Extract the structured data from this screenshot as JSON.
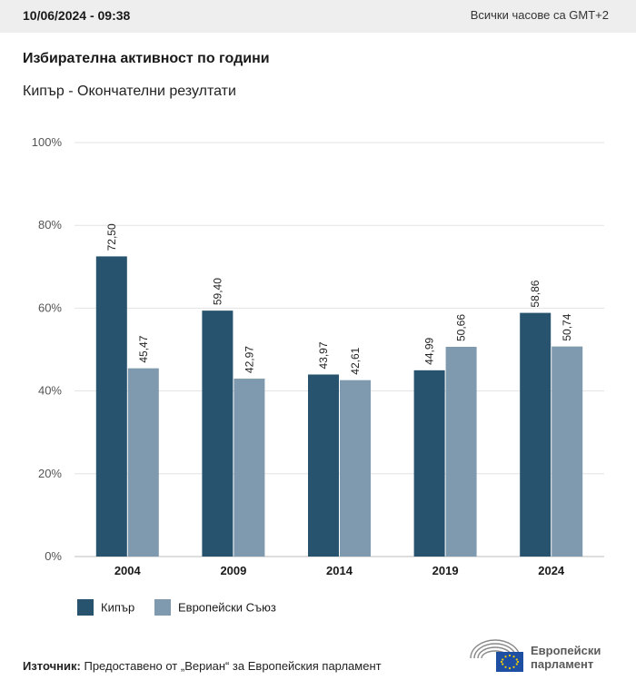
{
  "header": {
    "timestamp": "10/06/2024 - 09:38",
    "timezone": "Всички часове са GMT+2"
  },
  "title": "Избирателна активност по години",
  "subtitle": "Кипър - Окончателни резултати",
  "colors": {
    "cyprus": "#27536f",
    "eu": "#7f9aae",
    "grid": "#e3e3e3",
    "axis": "#bdbdbd"
  },
  "chart_data": {
    "type": "bar",
    "categories": [
      "2004",
      "2009",
      "2014",
      "2019",
      "2024"
    ],
    "series": [
      {
        "name": "Кипър",
        "values": [
          72.5,
          59.4,
          43.97,
          44.99,
          58.86
        ],
        "labels": [
          "72,50",
          "59,40",
          "43,97",
          "44,99",
          "58,86"
        ]
      },
      {
        "name": "Европейски Съюз",
        "values": [
          45.47,
          42.97,
          42.61,
          50.66,
          50.74
        ],
        "labels": [
          "45,47",
          "42,97",
          "42,61",
          "50,66",
          "50,74"
        ]
      }
    ],
    "y_ticks": [
      {
        "value": 0,
        "label": "0%"
      },
      {
        "value": 20,
        "label": "20%"
      },
      {
        "value": 40,
        "label": "40%"
      },
      {
        "value": 60,
        "label": "60%"
      },
      {
        "value": 80,
        "label": "80%"
      },
      {
        "value": 100,
        "label": "100%"
      }
    ],
    "ylim": [
      0,
      100
    ],
    "grid": true,
    "legend_position": "bottom-left"
  },
  "source": {
    "label": "Източник:",
    "text": " Предоставено от „Вериан“ за Европейския парламент"
  },
  "logo": {
    "line1": "Европейски",
    "line2": "парламент"
  }
}
